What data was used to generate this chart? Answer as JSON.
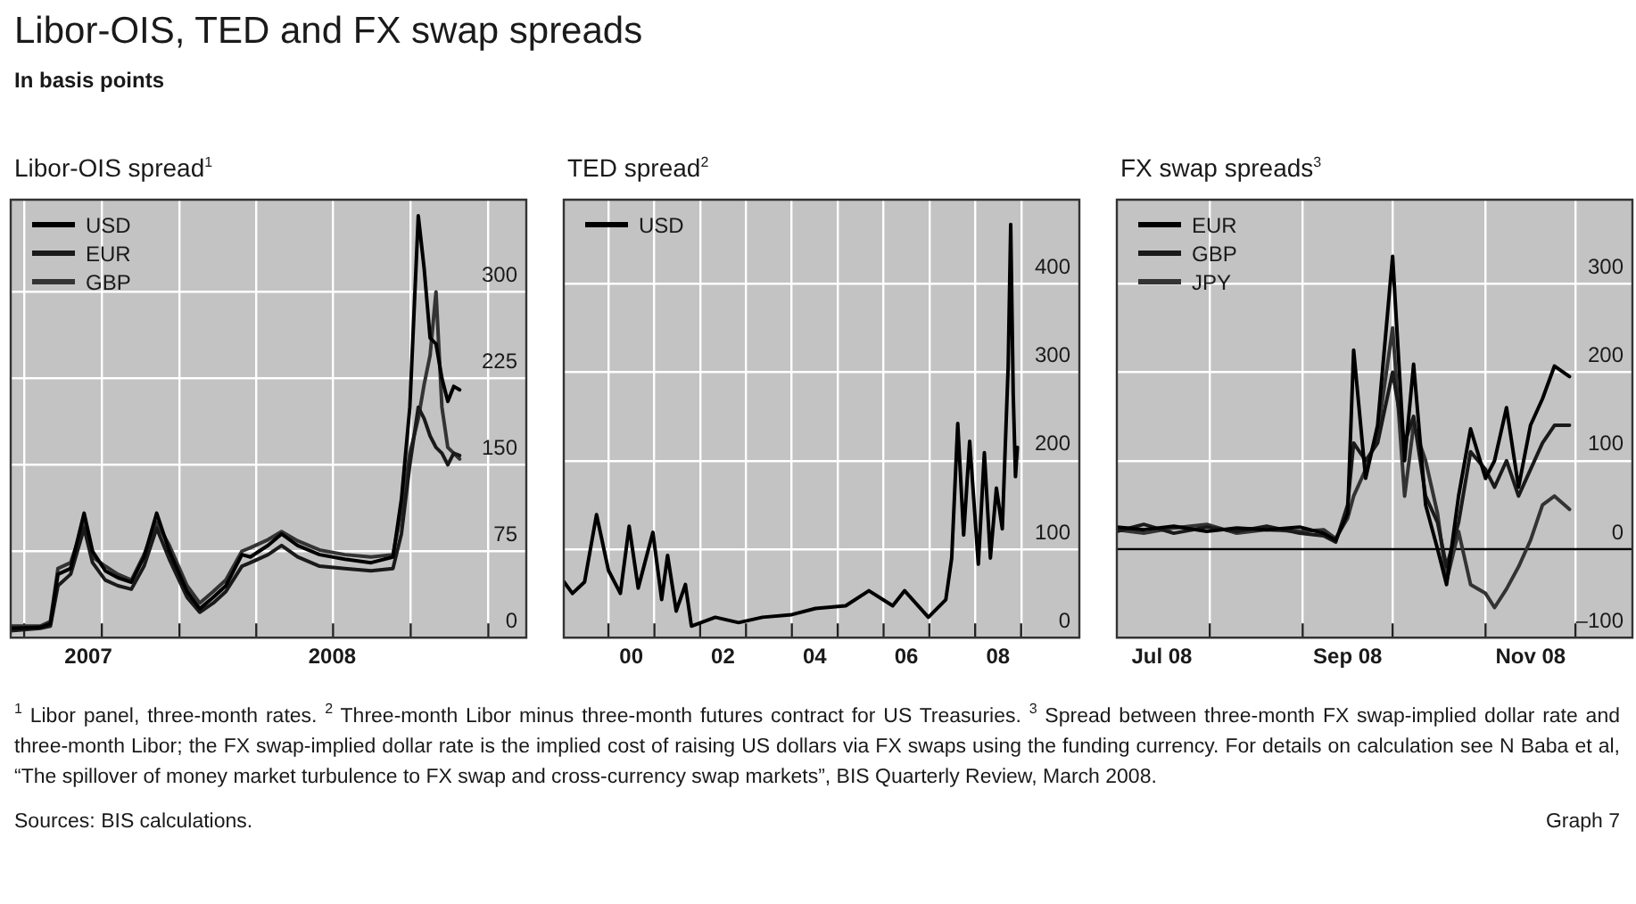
{
  "chart_data": [
    {
      "type": "other",
      "title": "Libor-OIS, TED and FX swap spreads",
      "subtitle": "In basis points"
    },
    {
      "type": "line",
      "title": "Libor-OIS spread$^{1}$",
      "legend": "top left",
      "grid": true,
      "xlim": [
        "2007-06-15",
        "2009-02-15"
      ],
      "xticks": [
        {
          "value": "2007-07-01",
          "label": null
        },
        {
          "value": "2007-09-15",
          "label": "2007"
        },
        {
          "value": "2007-10-01",
          "label": null
        },
        {
          "value": "2008-01-01",
          "label": null
        },
        {
          "value": "2008-04-01",
          "label": null
        },
        {
          "value": "2008-06-30",
          "label": "2008"
        },
        {
          "value": "2008-07-01",
          "label": null
        },
        {
          "value": "2008-10-01",
          "label": null
        },
        {
          "value": "2009-01-01",
          "label": null
        }
      ],
      "ylim": [
        0,
        380
      ],
      "yticks": [
        0,
        75,
        150,
        225,
        300
      ],
      "series": [
        {
          "name": "USD",
          "color": "#000000",
          "x": [
            "2007-06-15",
            "2007-07-20",
            "2007-08-01",
            "2007-08-10",
            "2007-08-25",
            "2007-09-10",
            "2007-09-20",
            "2007-10-05",
            "2007-10-20",
            "2007-11-05",
            "2007-11-20",
            "2007-12-05",
            "2007-12-20",
            "2008-01-10",
            "2008-01-25",
            "2008-02-10",
            "2008-02-25",
            "2008-03-15",
            "2008-03-25",
            "2008-04-15",
            "2008-05-01",
            "2008-05-20",
            "2008-06-15",
            "2008-07-15",
            "2008-08-15",
            "2008-09-10",
            "2008-09-20",
            "2008-09-30",
            "2008-10-10",
            "2008-10-17",
            "2008-10-24",
            "2008-10-31",
            "2008-11-07",
            "2008-11-14",
            "2008-11-21",
            "2008-11-28"
          ],
          "values": [
            8,
            9,
            12,
            55,
            60,
            108,
            75,
            58,
            52,
            48,
            70,
            108,
            75,
            40,
            25,
            35,
            45,
            72,
            70,
            80,
            90,
            80,
            72,
            68,
            65,
            70,
            120,
            200,
            366,
            320,
            260,
            255,
            225,
            205,
            218,
            215
          ]
        },
        {
          "name": "EUR",
          "color": "#1a1a1a",
          "x": [
            "2007-06-15",
            "2007-07-20",
            "2007-08-01",
            "2007-08-10",
            "2007-08-25",
            "2007-09-10",
            "2007-09-20",
            "2007-10-05",
            "2007-10-20",
            "2007-11-05",
            "2007-11-20",
            "2007-12-05",
            "2007-12-20",
            "2008-01-10",
            "2008-01-25",
            "2008-02-10",
            "2008-02-25",
            "2008-03-15",
            "2008-03-25",
            "2008-04-15",
            "2008-05-01",
            "2008-05-20",
            "2008-06-15",
            "2008-07-15",
            "2008-08-15",
            "2008-09-10",
            "2008-09-20",
            "2008-09-30",
            "2008-10-10",
            "2008-10-17",
            "2008-10-24",
            "2008-10-31",
            "2008-11-07",
            "2008-11-14",
            "2008-11-21",
            "2008-11-28"
          ],
          "values": [
            6,
            8,
            10,
            45,
            55,
            95,
            65,
            50,
            45,
            42,
            62,
            95,
            68,
            35,
            22,
            30,
            40,
            62,
            65,
            72,
            80,
            70,
            62,
            60,
            58,
            60,
            90,
            150,
            200,
            190,
            175,
            165,
            160,
            150,
            160,
            158
          ]
        },
        {
          "name": "GBP",
          "color": "#333333",
          "x": [
            "2007-06-15",
            "2007-07-20",
            "2007-08-01",
            "2007-08-10",
            "2007-08-25",
            "2007-09-10",
            "2007-09-20",
            "2007-10-05",
            "2007-10-20",
            "2007-11-05",
            "2007-11-20",
            "2007-12-05",
            "2007-12-20",
            "2008-01-10",
            "2008-01-25",
            "2008-02-10",
            "2008-02-25",
            "2008-03-15",
            "2008-03-25",
            "2008-04-15",
            "2008-05-01",
            "2008-05-20",
            "2008-06-15",
            "2008-07-15",
            "2008-08-15",
            "2008-09-10",
            "2008-09-20",
            "2008-09-30",
            "2008-10-10",
            "2008-10-17",
            "2008-10-24",
            "2008-10-31",
            "2008-11-07",
            "2008-11-14",
            "2008-11-21",
            "2008-11-28"
          ],
          "values": [
            10,
            10,
            14,
            60,
            65,
            100,
            70,
            62,
            55,
            50,
            72,
            100,
            80,
            45,
            30,
            40,
            50,
            75,
            78,
            85,
            92,
            84,
            76,
            72,
            70,
            72,
            110,
            160,
            190,
            220,
            245,
            300,
            200,
            165,
            160,
            155
          ]
        }
      ]
    },
    {
      "type": "line",
      "title": "TED spread$^{2}$",
      "legend": "top left",
      "grid": true,
      "xlim": [
        "1999-01-10",
        "2010-04-10"
      ],
      "xticks": [
        {
          "value": "2000-01-01",
          "label": null
        },
        {
          "value": "2000-07-01",
          "label": "00"
        },
        {
          "value": "2001-01-01",
          "label": null
        },
        {
          "value": "2002-01-01",
          "label": null
        },
        {
          "value": "2002-07-01",
          "label": "02"
        },
        {
          "value": "2003-01-01",
          "label": null
        },
        {
          "value": "2004-01-01",
          "label": null
        },
        {
          "value": "2004-07-01",
          "label": "04"
        },
        {
          "value": "2005-01-01",
          "label": null
        },
        {
          "value": "2006-01-01",
          "label": null
        },
        {
          "value": "2006-07-01",
          "label": "06"
        },
        {
          "value": "2007-01-01",
          "label": null
        },
        {
          "value": "2008-01-01",
          "label": null
        },
        {
          "value": "2008-07-01",
          "label": "08"
        },
        {
          "value": "2009-01-01",
          "label": null
        }
      ],
      "ylim": [
        0,
        495
      ],
      "yticks": [
        0,
        100,
        200,
        300,
        400
      ],
      "series": [
        {
          "name": "USD",
          "color": "#000000",
          "x": [
            "1999-01-12",
            "1999-03-20",
            "1999-06-25",
            "1999-09-28",
            "2000-01-01",
            "2000-04-05",
            "2000-06-14",
            "2000-08-25",
            "2000-12-20",
            "2001-02-28",
            "2001-04-16",
            "2001-06-24",
            "2001-09-05",
            "2001-10-23",
            "2002-05-01",
            "2002-11-03",
            "2003-05-12",
            "2004-01-01",
            "2004-07-08",
            "2005-03-05",
            "2005-09-06",
            "2006-03-15",
            "2006-06-18",
            "2006-12-24",
            "2007-05-12",
            "2007-06-28",
            "2007-08-15",
            "2007-10-01",
            "2007-11-18",
            "2008-01-26",
            "2008-03-14",
            "2008-05-01",
            "2008-06-18",
            "2008-08-04",
            "2008-09-20",
            "2008-10-10",
            "2008-10-30",
            "2008-11-17",
            "2008-12-02"
          ],
          "values": [
            63,
            50,
            63,
            139,
            76,
            50,
            126,
            56,
            119,
            43,
            93,
            30,
            60,
            13,
            23,
            17,
            23,
            26,
            33,
            36,
            53,
            36,
            53,
            23,
            43,
            90,
            242,
            116,
            222,
            83,
            209,
            90,
            169,
            123,
            308,
            467,
            275,
            182,
            215
          ]
        }
      ]
    },
    {
      "type": "line",
      "title": "FX swap spreads$^{3}$",
      "legend": "top left",
      "grid": true,
      "xlim": [
        "2008-07-01",
        "2008-12-20"
      ],
      "xticks": [
        {
          "value": "2008-07-16",
          "label": "Jul 08"
        },
        {
          "value": "2008-08-01",
          "label": null
        },
        {
          "value": "2008-09-01",
          "label": null
        },
        {
          "value": "2008-09-16",
          "label": "Sep 08"
        },
        {
          "value": "2008-10-01",
          "label": null
        },
        {
          "value": "2008-11-01",
          "label": null
        },
        {
          "value": "2008-11-16",
          "label": "Nov 08"
        },
        {
          "value": "2008-12-01",
          "label": null
        }
      ],
      "ylim": [
        -100,
        395
      ],
      "yticks": [
        {
          "value": -100,
          "label": "–100"
        },
        0,
        100,
        200,
        300
      ],
      "ref_lines": [
        {
          "axis": "y",
          "value": 0,
          "color": "#000000"
        }
      ],
      "series": [
        {
          "name": "EUR",
          "color": "#000000",
          "x": [
            "2008-07-01",
            "2008-07-10",
            "2008-07-20",
            "2008-07-31",
            "2008-08-10",
            "2008-08-20",
            "2008-08-31",
            "2008-09-08",
            "2008-09-12",
            "2008-09-16",
            "2008-09-18",
            "2008-09-22",
            "2008-09-26",
            "2008-10-01",
            "2008-10-05",
            "2008-10-08",
            "2008-10-12",
            "2008-10-16",
            "2008-10-19",
            "2008-10-23",
            "2008-10-27",
            "2008-11-01",
            "2008-11-04",
            "2008-11-08",
            "2008-11-12",
            "2008-11-16",
            "2008-11-20",
            "2008-11-24",
            "2008-11-29"
          ],
          "values": [
            25,
            22,
            26,
            20,
            24,
            22,
            25,
            18,
            10,
            40,
            225,
            80,
            140,
            331,
            100,
            209,
            50,
            0,
            -40,
            60,
            136,
            80,
            100,
            160,
            70,
            140,
            170,
            207,
            195
          ]
        },
        {
          "name": "GBP",
          "color": "#1a1a1a",
          "x": [
            "2008-07-01",
            "2008-07-10",
            "2008-07-20",
            "2008-07-31",
            "2008-08-10",
            "2008-08-20",
            "2008-08-31",
            "2008-09-08",
            "2008-09-12",
            "2008-09-16",
            "2008-09-18",
            "2008-09-22",
            "2008-09-26",
            "2008-10-01",
            "2008-10-05",
            "2008-10-08",
            "2008-10-12",
            "2008-10-16",
            "2008-10-19",
            "2008-10-23",
            "2008-10-27",
            "2008-11-01",
            "2008-11-04",
            "2008-11-08",
            "2008-11-12",
            "2008-11-16",
            "2008-11-20",
            "2008-11-24",
            "2008-11-29"
          ],
          "values": [
            20,
            28,
            18,
            25,
            20,
            26,
            18,
            15,
            8,
            50,
            120,
            100,
            120,
            200,
            120,
            150,
            60,
            30,
            -20,
            30,
            110,
            90,
            70,
            100,
            60,
            90,
            120,
            140,
            140
          ]
        },
        {
          "name": "JPY",
          "color": "#333333",
          "x": [
            "2008-07-01",
            "2008-07-10",
            "2008-07-20",
            "2008-07-31",
            "2008-08-10",
            "2008-08-20",
            "2008-08-31",
            "2008-09-08",
            "2008-09-12",
            "2008-09-16",
            "2008-09-18",
            "2008-09-22",
            "2008-09-26",
            "2008-10-01",
            "2008-10-05",
            "2008-10-08",
            "2008-10-12",
            "2008-10-16",
            "2008-10-19",
            "2008-10-23",
            "2008-10-27",
            "2008-11-01",
            "2008-11-04",
            "2008-11-08",
            "2008-11-12",
            "2008-11-16",
            "2008-11-20",
            "2008-11-24",
            "2008-11-29"
          ],
          "values": [
            22,
            18,
            24,
            28,
            18,
            22,
            20,
            22,
            12,
            35,
            60,
            90,
            130,
            250,
            60,
            140,
            100,
            40,
            -36,
            20,
            -40,
            -50,
            -66,
            -45,
            -20,
            10,
            50,
            60,
            45
          ]
        }
      ]
    },
    {
      "type": "other",
      "annotations": [
        "$^{1}$ Libor panel, three-month rates.  $^{2}$ Three-month Libor minus three-month futures contract for US Treasuries.  $^{3}$ Spread between three-month FX swap-implied dollar rate and three-month Libor; the FX swap-implied dollar rate is the implied cost of raising US dollars via FX swaps using the funding currency. For details on calculation see N Baba et al, “The spillover of money market turbulence to FX swap and cross-currency swap markets”, BIS Quarterly Review, March 2008.",
        "Sources: BIS calculations.",
        "Graph 7"
      ]
    }
  ]
}
